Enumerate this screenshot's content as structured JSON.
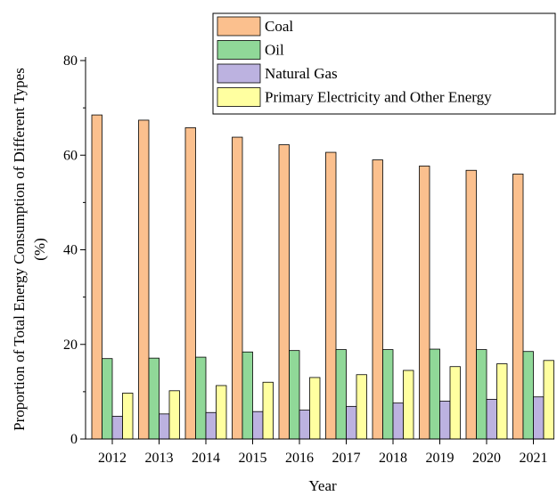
{
  "chart_data": {
    "type": "bar",
    "title": "",
    "xlabel": "Year",
    "ylabel_line1": "Proportion of Total Energy Consumption of Different Types",
    "ylabel_line2": "(%)",
    "categories": [
      "2012",
      "2013",
      "2014",
      "2015",
      "2016",
      "2017",
      "2018",
      "2019",
      "2020",
      "2021"
    ],
    "ylim": [
      0,
      80
    ],
    "yticks": [
      0,
      20,
      40,
      60,
      80
    ],
    "grid": false,
    "legend_position": "top-right",
    "series": [
      {
        "name": "Coal",
        "color": "#FBC08E",
        "values": [
          68.5,
          67.4,
          65.8,
          63.8,
          62.2,
          60.6,
          59.0,
          57.7,
          56.8,
          56.0
        ]
      },
      {
        "name": "Oil",
        "color": "#90D898",
        "values": [
          17.0,
          17.1,
          17.3,
          18.4,
          18.7,
          18.9,
          18.9,
          19.0,
          18.9,
          18.5
        ]
      },
      {
        "name": "Natural Gas",
        "color": "#BCB2E0",
        "values": [
          4.8,
          5.3,
          5.6,
          5.8,
          6.1,
          6.9,
          7.6,
          8.0,
          8.4,
          8.9
        ]
      },
      {
        "name": "Primary Electricity and Other Energy",
        "color": "#FFFFA0",
        "values": [
          9.7,
          10.2,
          11.3,
          12.0,
          13.0,
          13.6,
          14.5,
          15.3,
          15.9,
          16.6
        ]
      }
    ]
  }
}
